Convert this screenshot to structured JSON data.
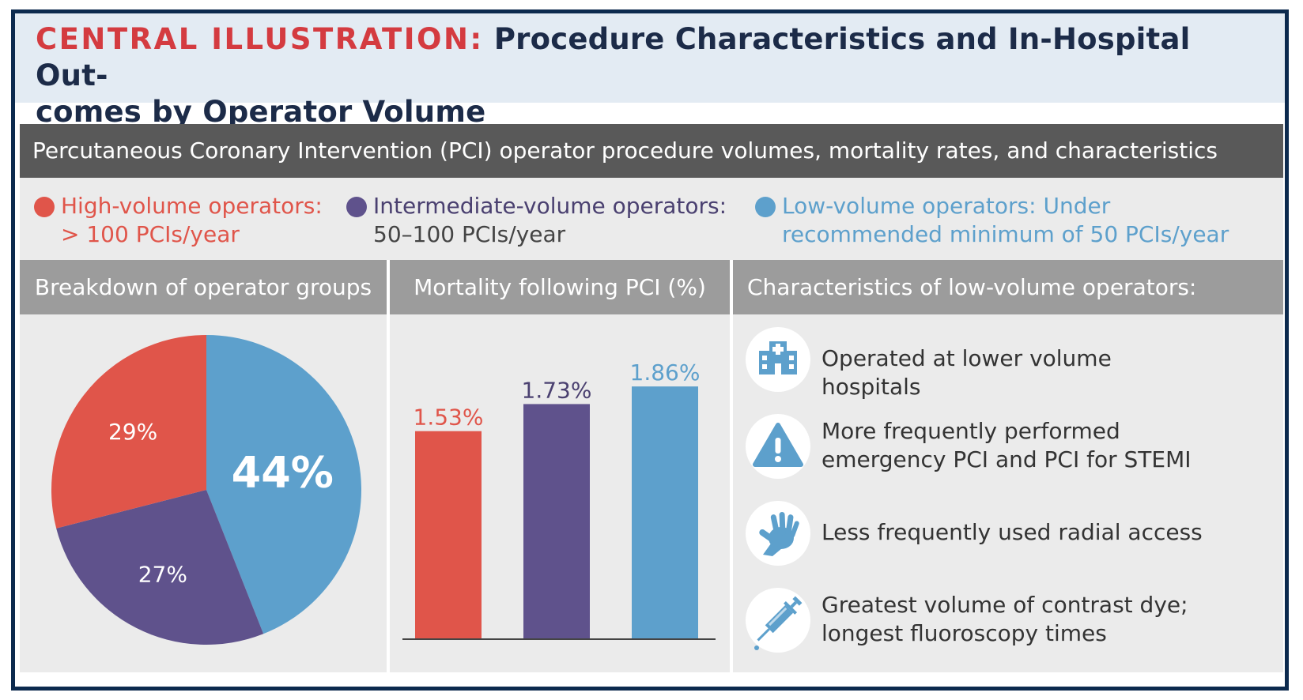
{
  "header": {
    "title_lead": "CENTRAL ILLUSTRATION:",
    "title_rest": "Procedure Characteristics and In-Hospital Out-\ncomes by Operator Volume"
  },
  "subtitle": "Percutaneous Coronary Intervention (PCI) operator procedure volumes, mortality rates, and characteristics",
  "legend": [
    {
      "bold": "High-volume operators:",
      "detail": "> 100 PCIs/year",
      "color": "#e0554a"
    },
    {
      "bold": "Intermediate-volume operators:",
      "detail": "50–100 PCIs/year",
      "color": "#5f528c"
    },
    {
      "bold": "Low-volume operators:",
      "detail": " Under recommended minimum of 50 PCIs/year",
      "color": "#5da0cc"
    }
  ],
  "panels": {
    "pie_heading": "Breakdown of operator groups",
    "bar_heading": "Mortality following PCI (%)",
    "chars_heading": "Characteristics of low-volume operators:"
  },
  "characteristics": [
    {
      "icon": "hospital-icon",
      "text": "Operated at lower volume hospitals"
    },
    {
      "icon": "warning-icon",
      "text": "More frequently performed\nemergency PCI and PCI for STEMI"
    },
    {
      "icon": "hand-icon",
      "text": "Less frequently used radial access"
    },
    {
      "icon": "syringe-icon",
      "text": "Greatest volume of contrast dye;\nlongest fluoroscopy times"
    }
  ],
  "chart_data": [
    {
      "type": "pie",
      "title": "Breakdown of operator groups",
      "labels": [
        "Low-volume operators",
        "Intermediate-volume operators",
        "High-volume operators"
      ],
      "values": [
        44,
        27,
        29
      ],
      "value_labels": [
        "44%",
        "27%",
        "29%"
      ],
      "colors": [
        "#5da0cc",
        "#5f528c",
        "#e0554a"
      ]
    },
    {
      "type": "bar",
      "title": "Mortality following PCI (%)",
      "categories": [
        "High-volume",
        "Intermediate-volume",
        "Low-volume"
      ],
      "values": [
        1.53,
        1.73,
        1.86
      ],
      "value_labels": [
        "1.53%",
        "1.73%",
        "1.86%"
      ],
      "colors": [
        "#e0554a",
        "#5f528c",
        "#5da0cc"
      ],
      "ylim": [
        0,
        2.1
      ],
      "xlabel": "",
      "ylabel": ""
    }
  ]
}
